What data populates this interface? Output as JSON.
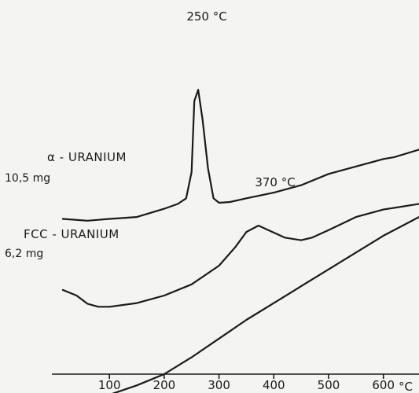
{
  "chart_data": {
    "type": "line",
    "x_unit": "°C",
    "x_ticks": [
      100,
      200,
      300,
      400,
      500,
      600
    ],
    "x_tick_labels": [
      "100",
      "200",
      "300",
      "400",
      "500",
      "600"
    ],
    "xlim": [
      -5,
      665
    ],
    "series": [
      {
        "name": "α - URANIUM",
        "sample_mass": "10,5 mg",
        "x": [
          15,
          60,
          100,
          150,
          200,
          225,
          240,
          250,
          255,
          262,
          270,
          280,
          290,
          300,
          320,
          350,
          400,
          450,
          500,
          550,
          600,
          620,
          665
        ],
        "y": [
          0.585,
          0.59,
          0.585,
          0.58,
          0.558,
          0.545,
          0.53,
          0.46,
          0.27,
          0.24,
          0.32,
          0.45,
          0.53,
          0.542,
          0.54,
          0.53,
          0.515,
          0.495,
          0.465,
          0.445,
          0.425,
          0.42,
          0.4
        ]
      },
      {
        "name": "FCC - URANIUM",
        "sample_mass": "6,2 mg",
        "x": [
          15,
          40,
          60,
          80,
          100,
          150,
          200,
          250,
          300,
          330,
          350,
          372,
          390,
          420,
          450,
          470,
          500,
          550,
          600,
          665
        ],
        "y": [
          0.775,
          0.79,
          0.812,
          0.82,
          0.82,
          0.81,
          0.79,
          0.76,
          0.71,
          0.66,
          0.62,
          0.603,
          0.615,
          0.635,
          0.642,
          0.635,
          0.615,
          0.58,
          0.56,
          0.545
        ]
      },
      {
        "name": "",
        "x": [
          15,
          50,
          100,
          150,
          200,
          250,
          300,
          350,
          400,
          450,
          500,
          550,
          600,
          665
        ],
        "y": [
          1.075,
          1.07,
          1.055,
          1.03,
          1.0,
          0.955,
          0.905,
          0.855,
          0.81,
          0.765,
          0.72,
          0.675,
          0.63,
          0.58
        ]
      }
    ],
    "annotations": [
      {
        "text": "250 °C",
        "x": 258
      },
      {
        "text": "370 °C",
        "x": 372
      }
    ]
  }
}
